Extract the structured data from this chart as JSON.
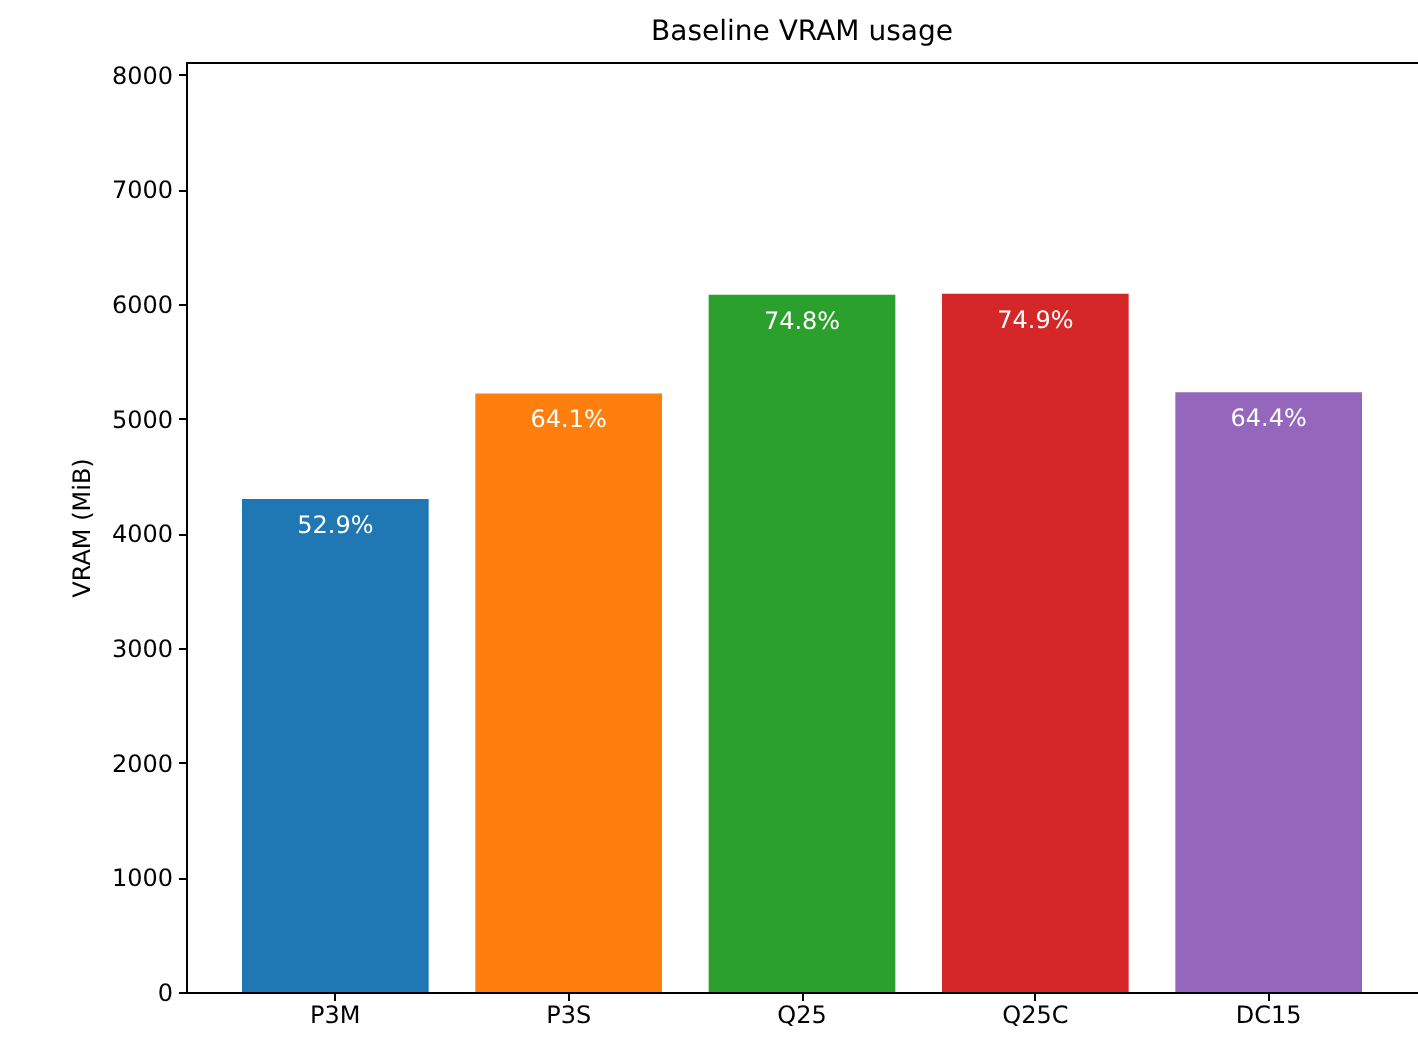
{
  "chart_data": {
    "type": "bar",
    "title": "Baseline VRAM usage",
    "ylabel": "VRAM (MiB)",
    "categories": [
      "P3M",
      "P3S",
      "Q25",
      "Q25C",
      "DC15"
    ],
    "values": [
      4300,
      5220,
      6080,
      6090,
      5230
    ],
    "colors": [
      "#1f77b4",
      "#ff7f0e",
      "#2ca02c",
      "#d62728",
      "#9467bd"
    ],
    "annotations": [
      {
        "text": "52.9%",
        "x": "P3M",
        "y": 4300
      },
      {
        "text": "64.1%",
        "x": "P3S",
        "y": 5220
      },
      {
        "text": "74.8%",
        "x": "Q25",
        "y": 6080
      },
      {
        "text": "74.9%",
        "x": "Q25C",
        "y": 6090
      },
      {
        "text": "64.4%",
        "x": "DC15",
        "y": 5230
      }
    ],
    "ylim": [
      0,
      8110
    ],
    "yticks": [
      0,
      1000,
      2000,
      3000,
      4000,
      5000,
      6000,
      7000,
      8000
    ]
  }
}
